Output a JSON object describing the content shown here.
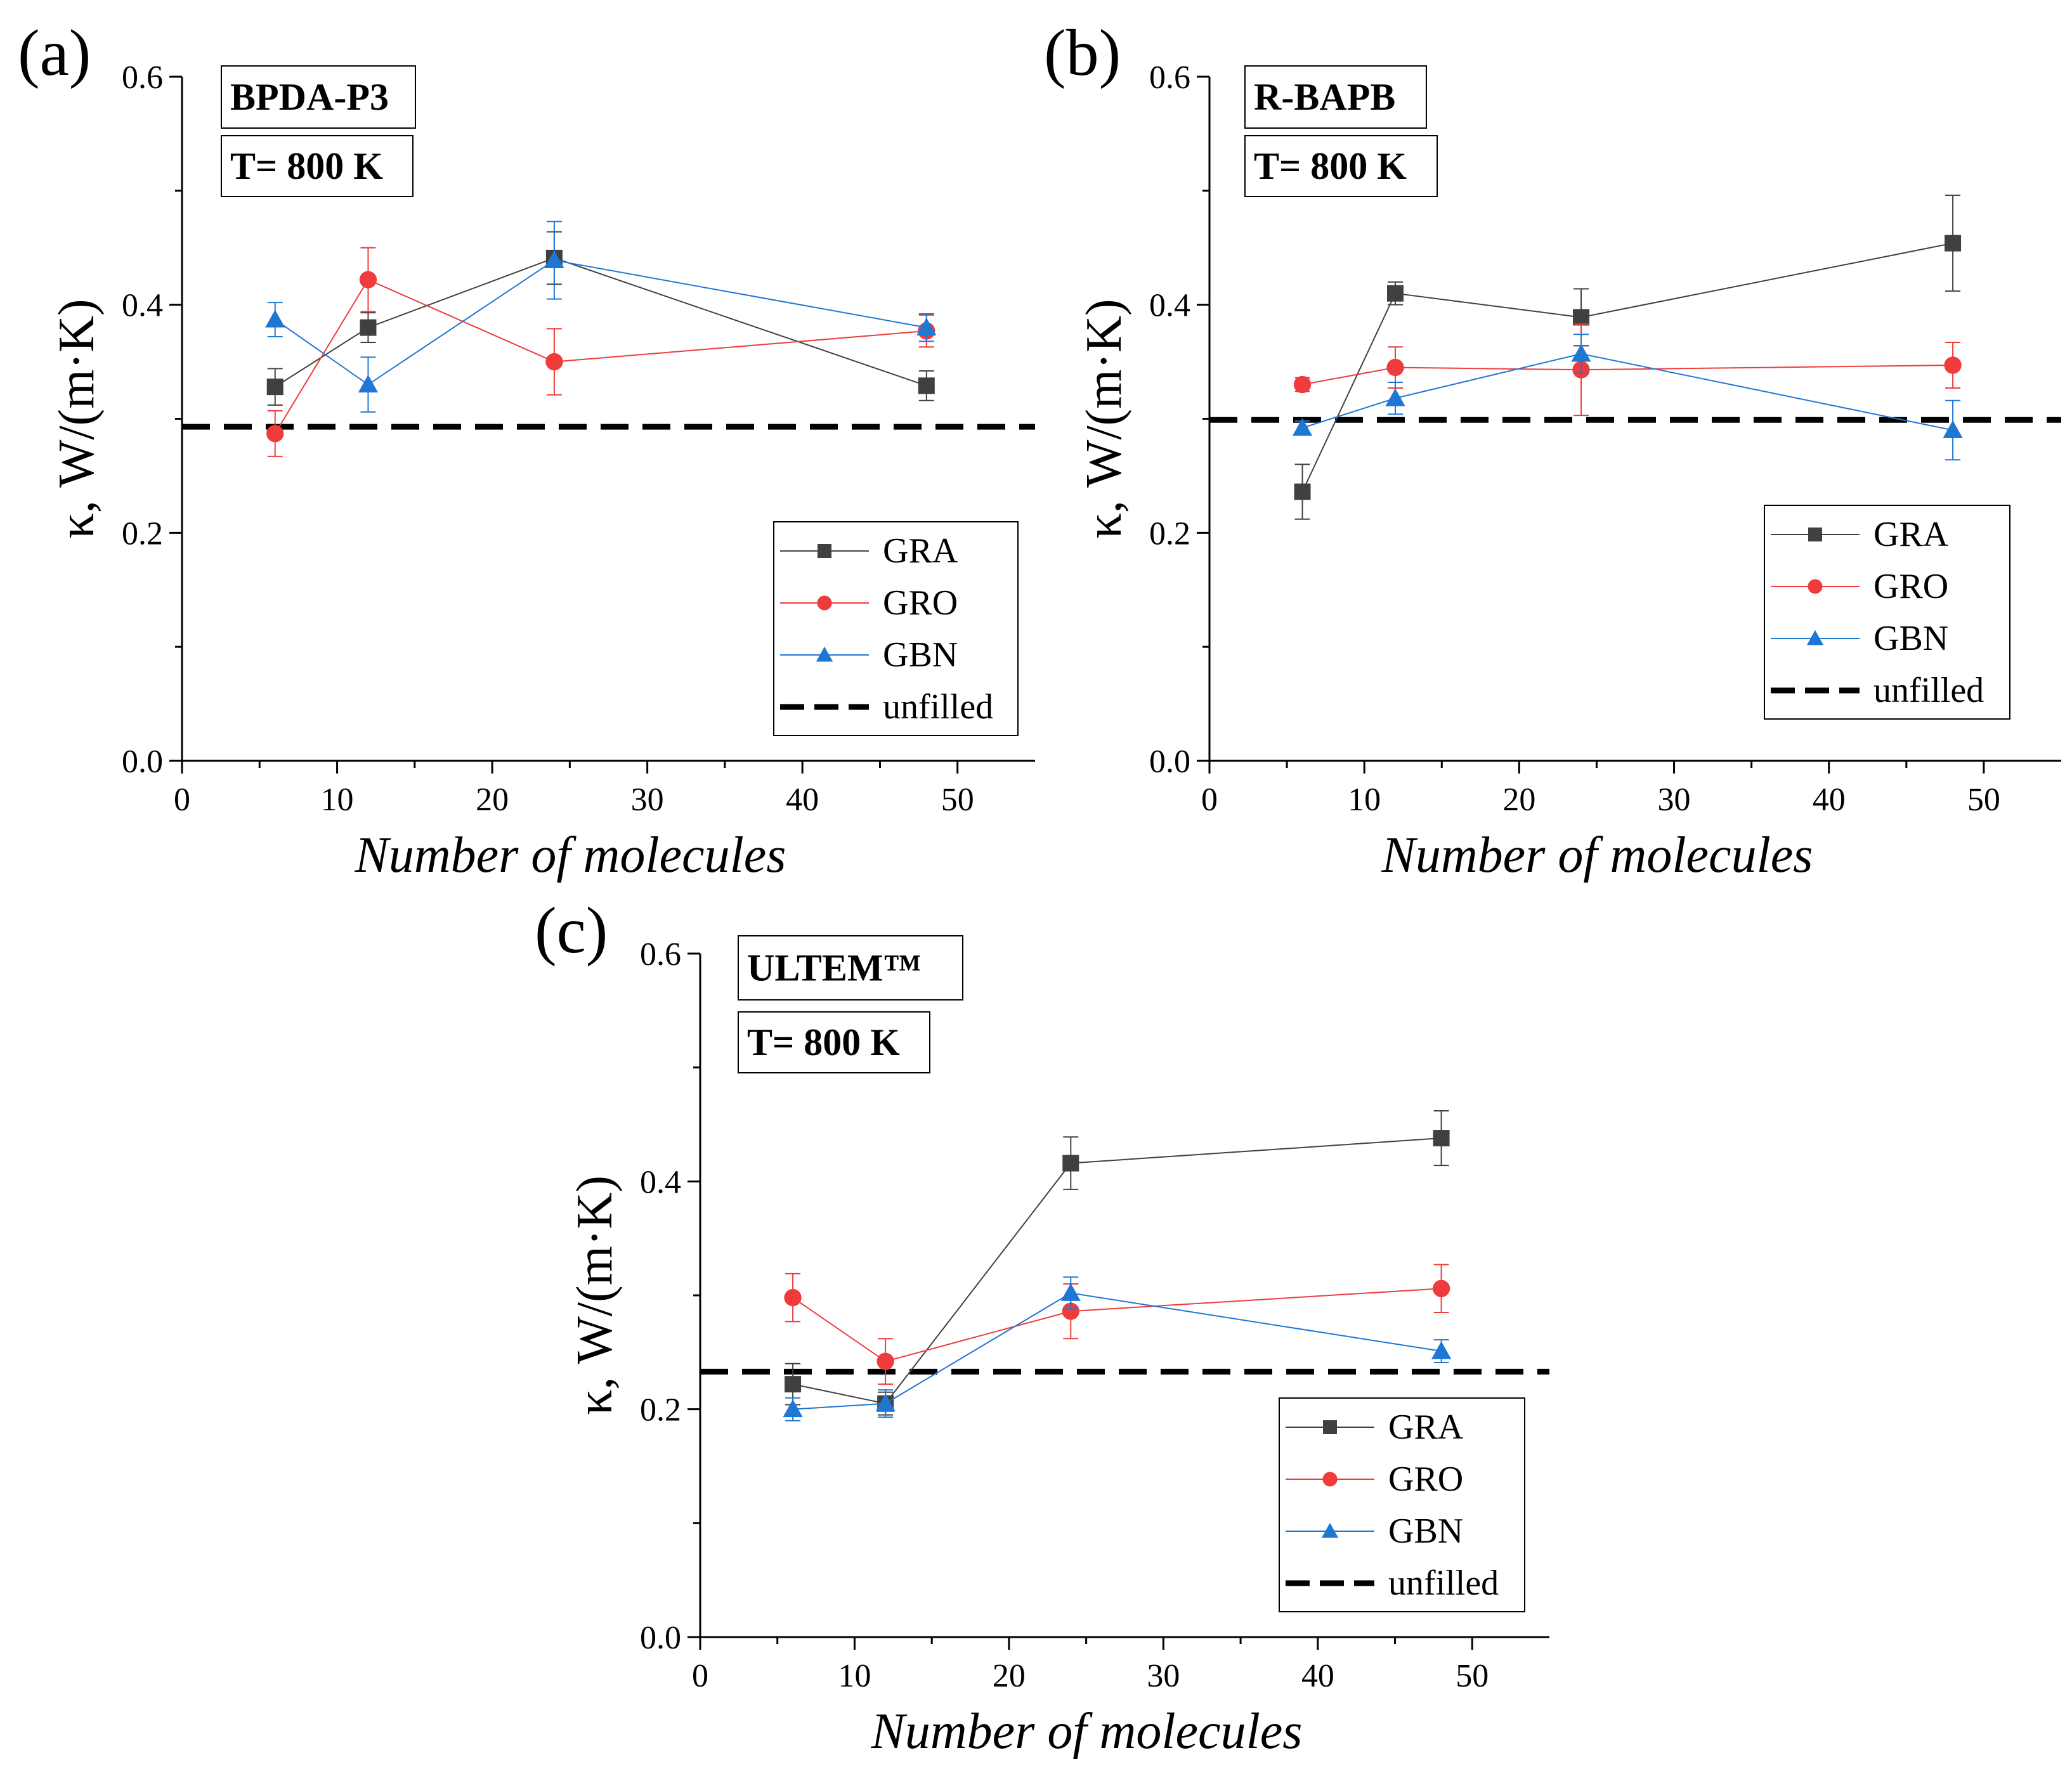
{
  "chart_data": [
    {
      "type": "line",
      "panel_label": "(a)",
      "annotations": [
        "BPDA-P3",
        "T= 800 K"
      ],
      "xlabel": "Number of molecules",
      "ylabel": "κ, W/(m·K)",
      "xlim": [
        0,
        55
      ],
      "ylim": [
        0,
        0.6
      ],
      "xticks": [
        "0",
        "10",
        "20",
        "30",
        "40",
        "50"
      ],
      "yticks": [
        "0.0",
        "0.2",
        "0.4",
        "0.6"
      ],
      "x": [
        6,
        12,
        24,
        48
      ],
      "series": [
        {
          "name": "GRA",
          "values": [
            0.328,
            0.38,
            0.441,
            0.329
          ],
          "errors": [
            0.016,
            0.013,
            0.023,
            0.013
          ],
          "color": "#404040",
          "marker": "square"
        },
        {
          "name": "GRO",
          "values": [
            0.287,
            0.422,
            0.35,
            0.377
          ],
          "errors": [
            0.02,
            0.028,
            0.029,
            0.014
          ],
          "color": "#ef3b3b",
          "marker": "circle"
        },
        {
          "name": "GBN",
          "values": [
            0.387,
            0.33,
            0.439,
            0.38
          ],
          "errors": [
            0.015,
            0.024,
            0.034,
            0.012
          ],
          "color": "#1f77d4",
          "marker": "triangle"
        }
      ],
      "reference_line": {
        "name": "unfilled",
        "value": 0.293,
        "style": "dashed",
        "color": "#000000"
      },
      "legend_position": "bottom-right",
      "grid": false
    },
    {
      "type": "line",
      "panel_label": "(b)",
      "annotations": [
        "R-BAPB",
        "T= 800 K"
      ],
      "xlabel": "Number of molecules",
      "ylabel": "κ, W/(m·K)",
      "xlim": [
        0,
        55
      ],
      "ylim": [
        0,
        0.6
      ],
      "xticks": [
        "0",
        "10",
        "20",
        "30",
        "40",
        "50"
      ],
      "yticks": [
        "0.0",
        "0.2",
        "0.4",
        "0.6"
      ],
      "x": [
        6,
        12,
        24,
        48
      ],
      "series": [
        {
          "name": "GRA",
          "values": [
            0.236,
            0.41,
            0.389,
            0.454
          ],
          "errors": [
            0.024,
            0.01,
            0.025,
            0.042
          ],
          "color": "#404040",
          "marker": "square"
        },
        {
          "name": "GRO",
          "values": [
            0.33,
            0.345,
            0.343,
            0.347
          ],
          "errors": [
            0.006,
            0.018,
            0.04,
            0.02
          ],
          "color": "#ef3b3b",
          "marker": "circle"
        },
        {
          "name": "GBN",
          "values": [
            0.292,
            0.318,
            0.357,
            0.29
          ],
          "errors": [
            0.006,
            0.014,
            0.017,
            0.026
          ],
          "color": "#1f77d4",
          "marker": "triangle"
        }
      ],
      "reference_line": {
        "name": "unfilled",
        "value": 0.299,
        "style": "dashed",
        "color": "#000000"
      },
      "legend_position": "bottom-right",
      "grid": false
    },
    {
      "type": "line",
      "panel_label": "(c)",
      "annotations": [
        "ULTEM™",
        "T= 800 K"
      ],
      "xlabel": "Number of molecules",
      "ylabel": "κ, W/(m·K)",
      "xlim": [
        0,
        55
      ],
      "ylim": [
        0,
        0.6
      ],
      "xticks": [
        "0",
        "10",
        "20",
        "30",
        "40",
        "50"
      ],
      "yticks": [
        "0.0",
        "0.2",
        "0.4",
        "0.6"
      ],
      "x": [
        6,
        12,
        24,
        48
      ],
      "series": [
        {
          "name": "GRA",
          "values": [
            0.222,
            0.205,
            0.416,
            0.438
          ],
          "errors": [
            0.018,
            0.01,
            0.023,
            0.024
          ],
          "color": "#404040",
          "marker": "square"
        },
        {
          "name": "GRO",
          "values": [
            0.298,
            0.242,
            0.286,
            0.306
          ],
          "errors": [
            0.021,
            0.02,
            0.024,
            0.021
          ],
          "color": "#ef3b3b",
          "marker": "circle"
        },
        {
          "name": "GBN",
          "values": [
            0.2,
            0.205,
            0.302,
            0.251
          ],
          "errors": [
            0.01,
            0.012,
            0.014,
            0.01
          ],
          "color": "#1f77d4",
          "marker": "triangle"
        }
      ],
      "reference_line": {
        "name": "unfilled",
        "value": 0.233,
        "style": "dashed",
        "color": "#000000"
      },
      "legend_position": "bottom-right",
      "grid": false
    }
  ]
}
